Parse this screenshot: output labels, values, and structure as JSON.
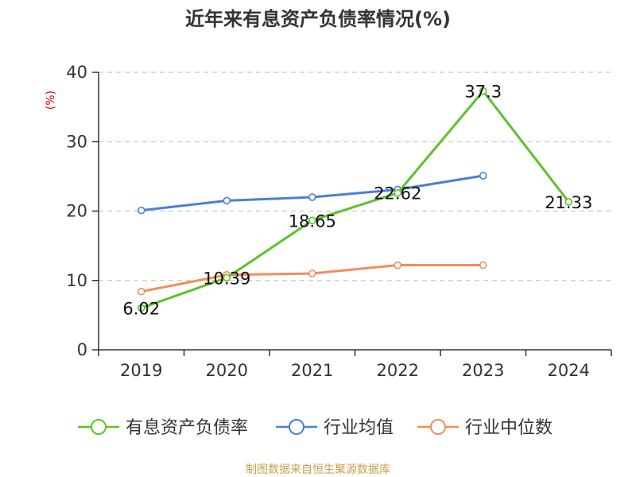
{
  "title": "近年来有息资产负债率情况(%)",
  "source": "制图数据来自恒生聚源数据库",
  "chart_data": {
    "type": "line",
    "title": "近年来有息资产负债率情况(%)",
    "ylabel": "(%)",
    "xlabel": "",
    "categories": [
      "2019",
      "2020",
      "2021",
      "2022",
      "2023",
      "2024"
    ],
    "ylim": [
      0,
      40
    ],
    "yticks": [
      0,
      10,
      20,
      30,
      40
    ],
    "grid": true,
    "legend_position": "bottom",
    "series": [
      {
        "name": "有息资产负债率",
        "color": "#5cc328",
        "values": [
          6.02,
          10.39,
          18.65,
          22.62,
          37.3,
          21.33
        ],
        "labels": [
          "6.02",
          "10.39",
          "18.65",
          "22.62",
          "37.3",
          "21.33"
        ]
      },
      {
        "name": "行业均值",
        "color": "#4a7fd9",
        "values": [
          20.1,
          21.5,
          22.0,
          23.1,
          25.1,
          null
        ]
      },
      {
        "name": "行业中位数",
        "color": "#f58c5a",
        "values": [
          8.4,
          10.8,
          11.0,
          12.2,
          12.2,
          null
        ]
      }
    ]
  }
}
